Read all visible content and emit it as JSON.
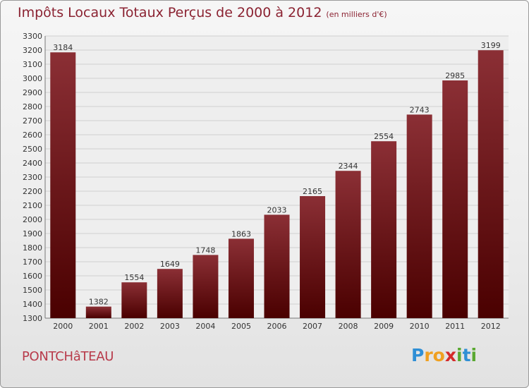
{
  "header": {
    "title": "Impôts Locaux Totaux Perçus de 2000 à 2012",
    "subtitle": "(en milliers d'€)"
  },
  "footer": {
    "place": "PONTCHâTEAU",
    "logo_letters": [
      {
        "ch": "P",
        "color": "#2f8fd5"
      },
      {
        "ch": "r",
        "color": "#f0a020"
      },
      {
        "ch": "o",
        "color": "#f0a020"
      },
      {
        "ch": "x",
        "color": "#d42a2a"
      },
      {
        "ch": "i",
        "color": "#5aa832"
      },
      {
        "ch": "t",
        "color": "#2f8fd5"
      },
      {
        "ch": "i",
        "color": "#5aa832"
      }
    ]
  },
  "chart_data": {
    "type": "bar",
    "categories": [
      "2000",
      "2001",
      "2002",
      "2003",
      "2004",
      "2005",
      "2006",
      "2007",
      "2008",
      "2009",
      "2010",
      "2011",
      "2012"
    ],
    "values": [
      3184,
      1382,
      1554,
      1649,
      1748,
      1863,
      2033,
      2165,
      2344,
      2554,
      2743,
      2985,
      3199
    ],
    "ylim": [
      1300,
      3300
    ],
    "ytick_step": 100,
    "grid": true,
    "bar_color_top": "#8b2f35",
    "bar_color_bottom": "#4a0000"
  }
}
